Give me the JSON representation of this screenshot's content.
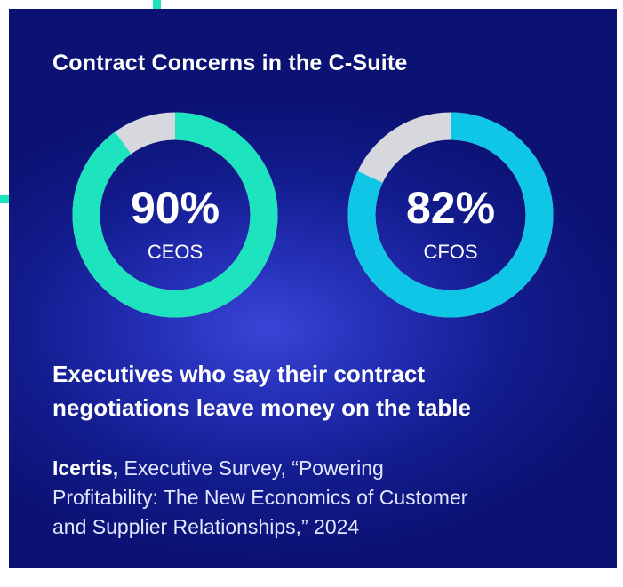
{
  "colors": {
    "ring_track": "#d6d8de",
    "ceo_ring": "#1ee3bf",
    "cfo_ring": "#10c6e6",
    "accent": "#1ee3bf"
  },
  "chart_data": {
    "type": "pie",
    "title": "Contract Concerns in the C-Suite",
    "style": "donut",
    "series": [
      {
        "name": "CEOS",
        "value": 90,
        "value_label": "90%",
        "max": 100
      },
      {
        "name": "CFOS",
        "value": 82,
        "value_label": "82%",
        "max": 100
      }
    ]
  },
  "description": {
    "line1": "Executives who say their contract",
    "line2": "negotiations leave money on the table"
  },
  "source": {
    "org": "Icertis,",
    "line1": " Executive Survey, “Powering",
    "line2": "Profitability: The New Economics of Customer",
    "line3": "and Supplier Relationships,” 2024"
  }
}
